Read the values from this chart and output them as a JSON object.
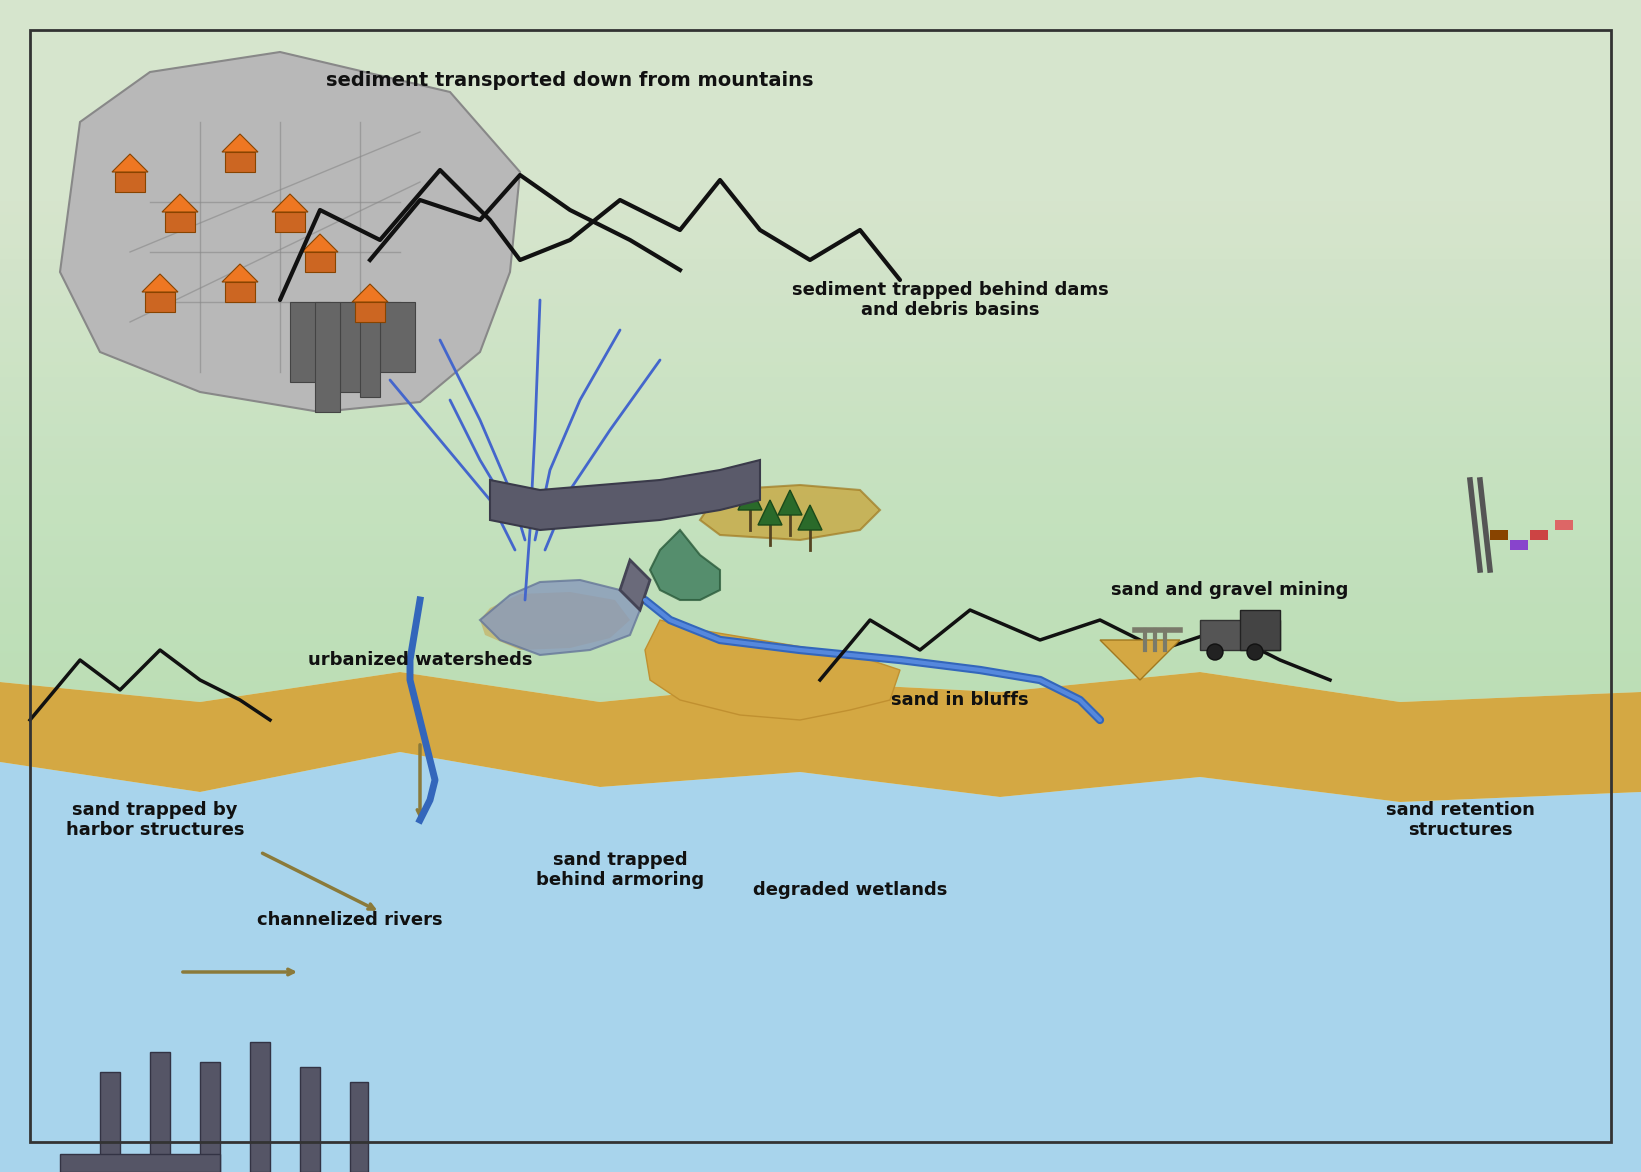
{
  "title": "sediment transported down from mountains",
  "labels": {
    "mountains_top": "sediment transported down from mountains",
    "dam": "sediment trapped behind dams\nand debris basins",
    "urban": "urbanized watersheds",
    "mining": "sand and gravel mining",
    "bluffs": "sand in bluffs",
    "harbor": "sand trapped by\nharbor structures",
    "channelized": "channelized rivers",
    "armoring": "sand trapped\nbehind armoring",
    "wetlands": "degraded wetlands",
    "retention": "sand retention\nstructures"
  },
  "bg_top": "#ffffff",
  "bg_mid": "#c8d8b8",
  "bg_bottom": "#afd4e8",
  "sand_color": "#d4a843",
  "water_color": "#5b8ec4",
  "urban_color": "#b0b0b0",
  "text_color": "#111111",
  "mountain_color": "#222222",
  "dam_color": "#7a7a8a",
  "arrow_color": "#8b7a3a"
}
